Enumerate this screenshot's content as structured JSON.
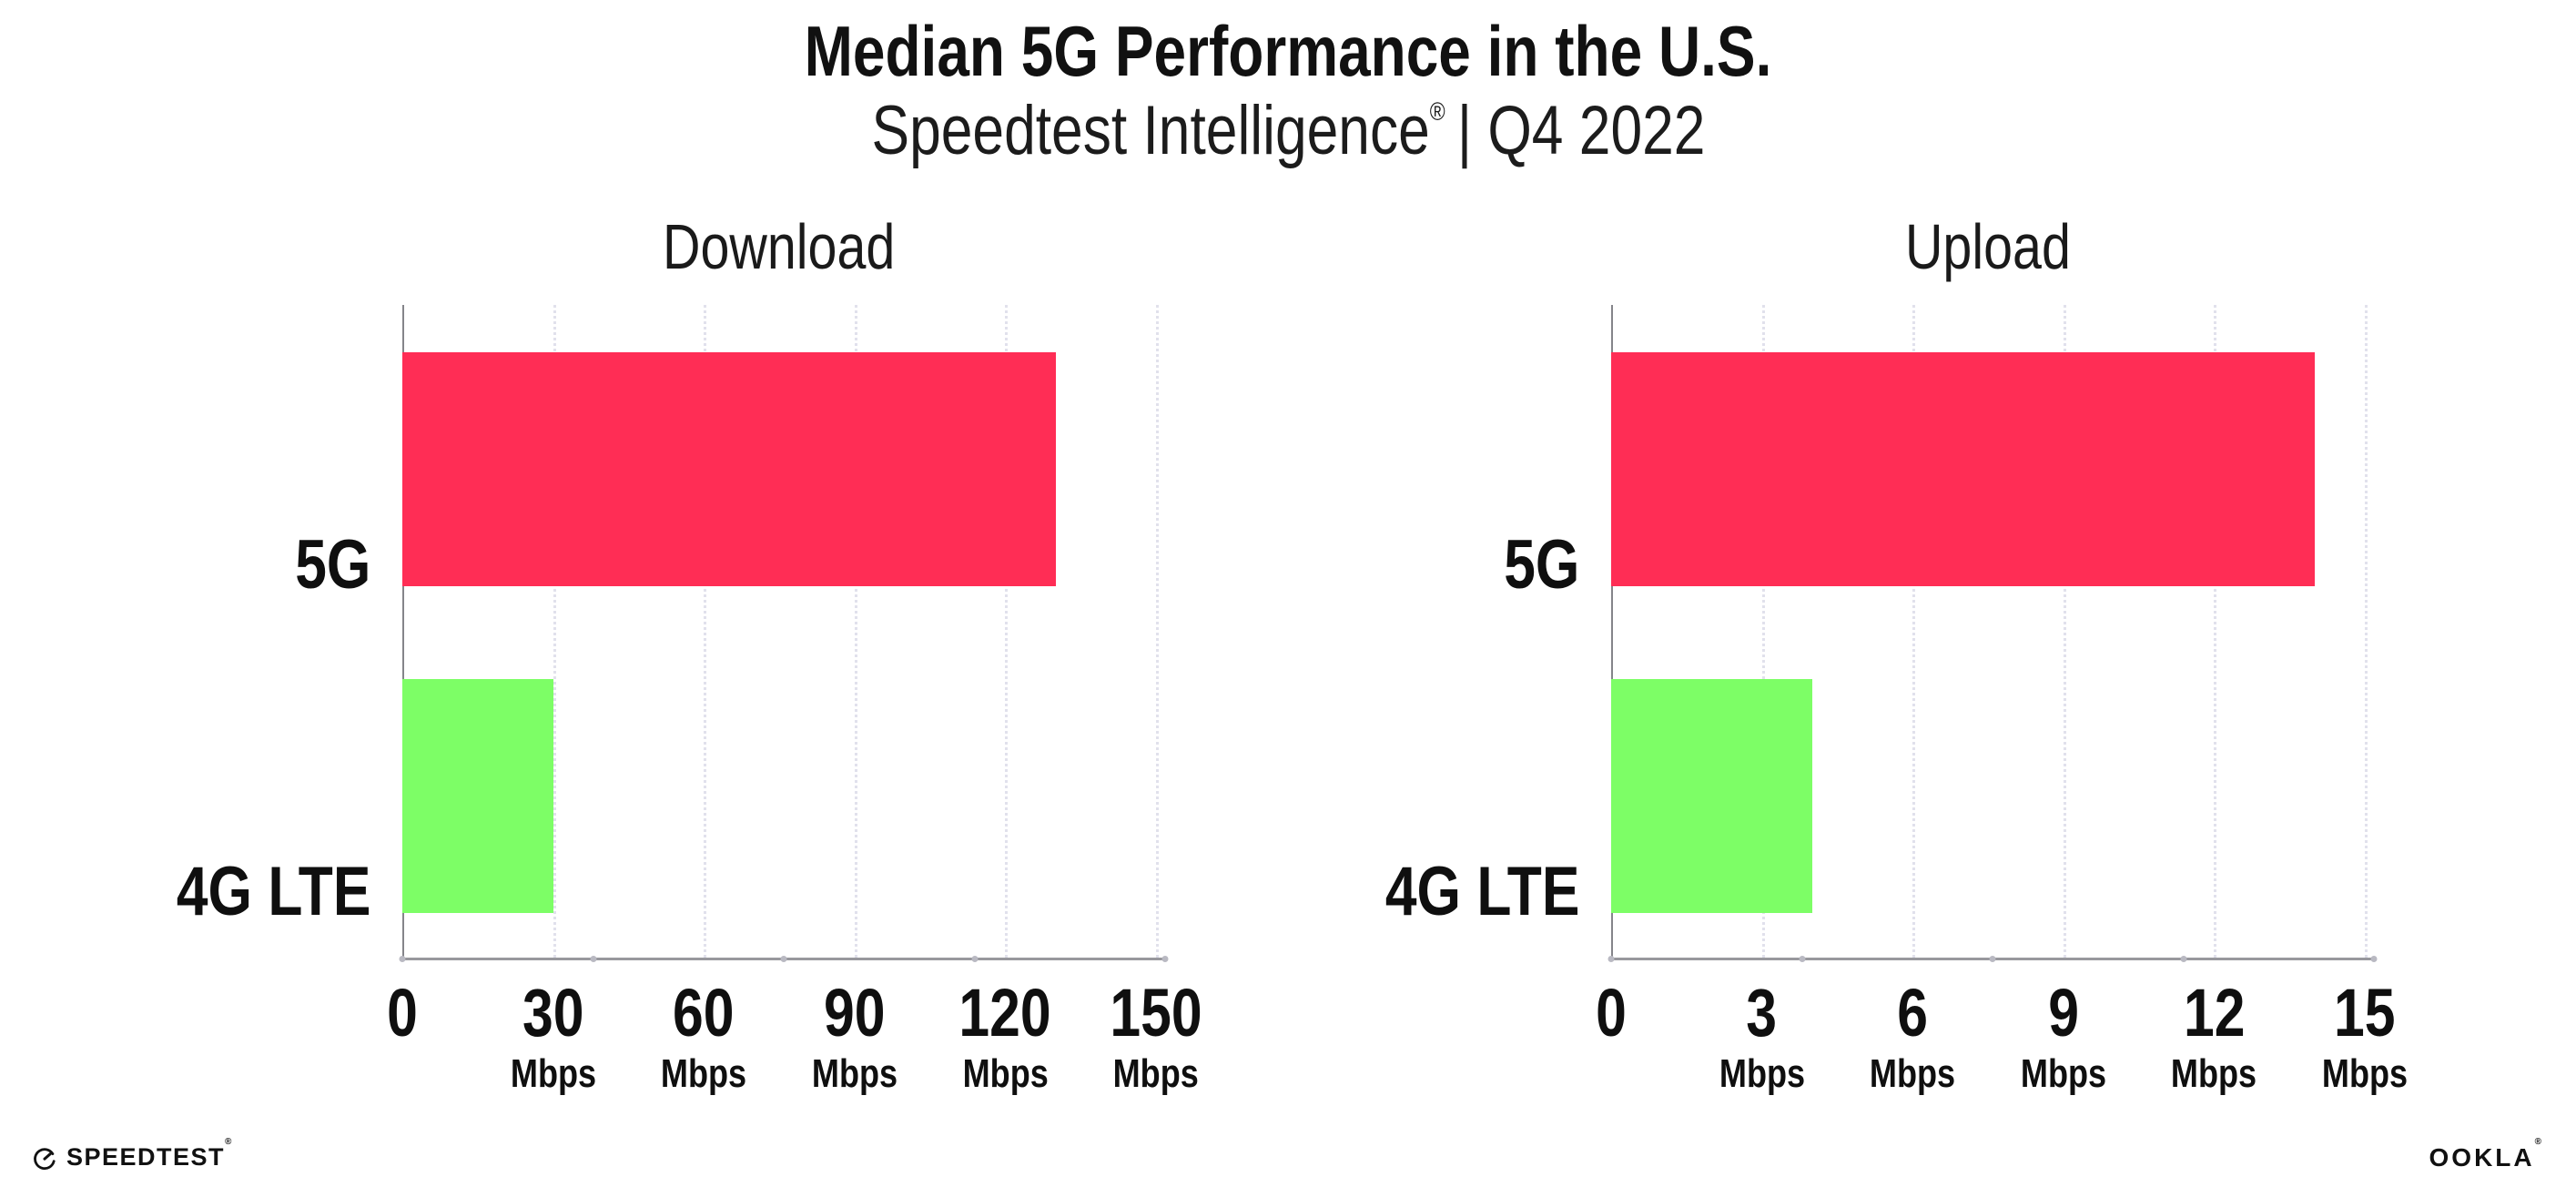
{
  "header": {
    "title": "Median 5G Performance in the U.S.",
    "subtitle_brand": "Speedtest Intelligence",
    "subtitle_reg": "®",
    "subtitle_rest": "| Q4 2022"
  },
  "colors": {
    "bar_5g": "#FF2D55",
    "bar_4g_lte": "#7DFE66",
    "gridline": "#E1E1EC",
    "axis": "#98989d"
  },
  "chart_data": [
    {
      "type": "bar",
      "orientation": "horizontal",
      "title": "Download",
      "categories": [
        "5G",
        "4G LTE"
      ],
      "values": [
        130,
        30
      ],
      "unit": "Mbps",
      "xlim": [
        0,
        150
      ],
      "ticks": [
        0,
        30,
        60,
        90,
        120,
        150
      ],
      "tick_unit_label": "Mbps",
      "bar_colors": [
        "#FF2D55",
        "#7DFE66"
      ],
      "grid": "dotted-vertical",
      "legend": "none"
    },
    {
      "type": "bar",
      "orientation": "horizontal",
      "title": "Upload",
      "categories": [
        "5G",
        "4G LTE"
      ],
      "values": [
        14,
        4
      ],
      "unit": "Mbps",
      "xlim": [
        0,
        15
      ],
      "ticks": [
        0,
        3,
        6,
        9,
        12,
        15
      ],
      "tick_unit_label": "Mbps",
      "bar_colors": [
        "#FF2D55",
        "#7DFE66"
      ],
      "grid": "dotted-vertical",
      "legend": "none"
    }
  ],
  "footer": {
    "speedtest_label": "SPEEDTEST",
    "speedtest_reg": "®",
    "ookla_label": "OOKLA",
    "ookla_reg": "®"
  }
}
